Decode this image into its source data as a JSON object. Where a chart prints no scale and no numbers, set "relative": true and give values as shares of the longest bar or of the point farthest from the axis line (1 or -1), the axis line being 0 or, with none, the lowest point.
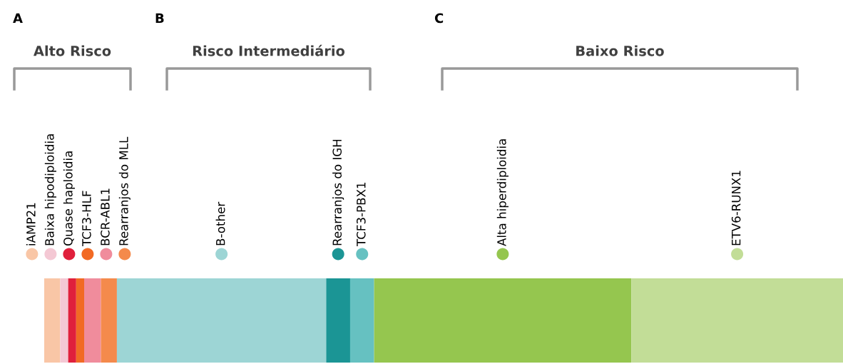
{
  "chart_data": {
    "type": "bar",
    "orientation": "horizontal",
    "stacked": true,
    "relative": true,
    "categories": [
      null
    ],
    "series": [
      {
        "name": "iAMP21",
        "color": "#f9c6a6",
        "values": [
          0.02
        ]
      },
      {
        "name": "Baixa hipodiploidia",
        "color": "#f4c8d4",
        "values": [
          0.01
        ]
      },
      {
        "name": "Quase haploidia",
        "color": "#e0203c",
        "values": [
          0.01
        ]
      },
      {
        "name": "TCF3-HLF",
        "color": "#f26a24",
        "values": [
          0.01
        ]
      },
      {
        "name": "BCR-ABL1",
        "color": "#f08c9c",
        "values": [
          0.021
        ]
      },
      {
        "name": "Rearranjos do MLL",
        "color": "#f48a4c",
        "values": [
          0.02
        ]
      },
      {
        "name": "B-other",
        "color": "#9dd5d5",
        "values": [
          0.262
        ]
      },
      {
        "name": "Rearranjos do IGH",
        "color": "#1b9595",
        "values": [
          0.03
        ]
      },
      {
        "name": "TCF3-PBX1",
        "color": "#66c1c1",
        "values": [
          0.03
        ]
      },
      {
        "name": "Alta hiperdiploidia",
        "color": "#95c64f",
        "values": [
          0.322
        ]
      },
      {
        "name": "ETV6-RUNX1",
        "color": "#c2dd97",
        "values": [
          0.265
        ]
      }
    ],
    "annotations": [
      "A",
      "B",
      "C",
      "Alto Risco",
      "Risco Intermediário",
      "Baixo Risco"
    ]
  }
}
